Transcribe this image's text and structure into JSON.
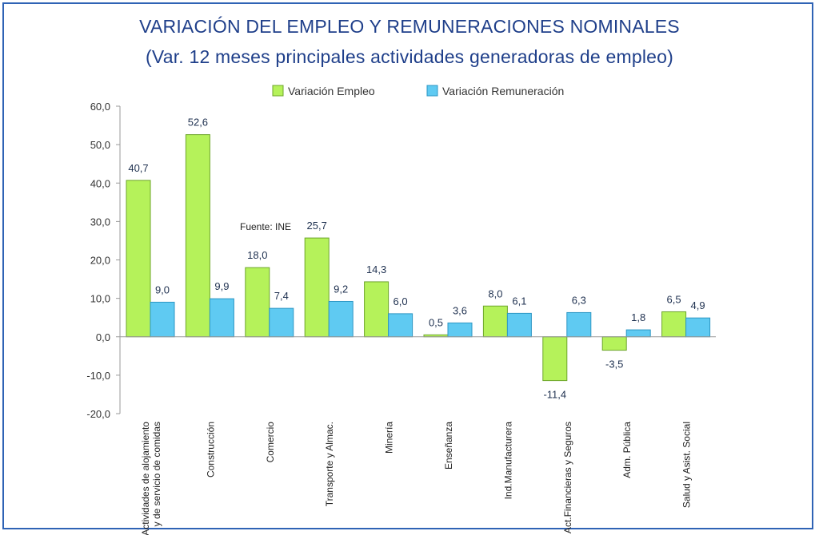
{
  "chart_data": {
    "type": "bar",
    "title": "VARIACIÓN DEL EMPLEO Y REMUNERACIONES NOMINALES",
    "subtitle": "(Var. 12 meses principales actividades generadoras de empleo)",
    "annotation": "Fuente: INE",
    "categories": [
      [
        "Actividades de alojamiento",
        "y de servicio de comidas"
      ],
      [
        "Construcción"
      ],
      [
        "Comercio"
      ],
      [
        "Transporte y Almac."
      ],
      [
        "Minería"
      ],
      [
        "Enseñanza"
      ],
      [
        "Ind.Manufacturera"
      ],
      [
        "Act.Financieras y Seguros"
      ],
      [
        "Adm. Pública"
      ],
      [
        "Salud y Asist. Social"
      ]
    ],
    "series": [
      {
        "name": "Variación Empleo",
        "color": "#b5f25a",
        "stroke": "#6da52a",
        "values": [
          40.7,
          52.6,
          18.0,
          25.7,
          14.3,
          0.5,
          8.0,
          -11.4,
          -3.5,
          6.5
        ],
        "labels": [
          "40,7",
          "52,6",
          "18,0",
          "25,7",
          "14,3",
          "0,5",
          "8,0",
          "-11,4",
          "-3,5",
          "6,5"
        ]
      },
      {
        "name": "Variación Remuneración",
        "color": "#5fcaf2",
        "stroke": "#2d97c4",
        "values": [
          9.0,
          9.9,
          7.4,
          9.2,
          6.0,
          3.6,
          6.1,
          6.3,
          1.8,
          4.9
        ],
        "labels": [
          "9,0",
          "9,9",
          "7,4",
          "9,2",
          "6,0",
          "3,6",
          "6,1",
          "6,3",
          "1,8",
          "4,9"
        ]
      }
    ],
    "ylim": [
      -20,
      60
    ],
    "yticks": [
      60,
      50,
      40,
      30,
      20,
      10,
      0,
      -10,
      -20
    ],
    "ytick_labels": [
      "60,0",
      "50,0",
      "40,0",
      "30,0",
      "20,0",
      "10,0",
      "0,0",
      "-10,0",
      "-20,0"
    ],
    "grid": false,
    "legend_position": "top-center"
  }
}
